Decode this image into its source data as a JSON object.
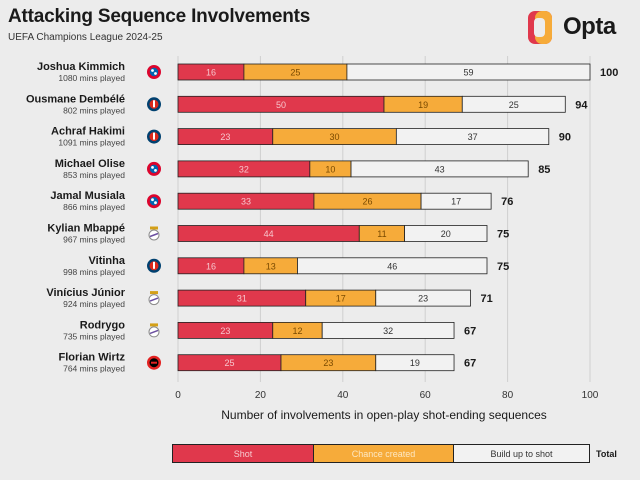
{
  "header": {
    "title": "Attacking Sequence Involvements",
    "subtitle": "UEFA Champions League 2024-25",
    "brand": "Opta"
  },
  "colors": {
    "shot": "#e0384c",
    "chance": "#f6ab3a",
    "build": "#f2f2f2",
    "outline": "#222222"
  },
  "chart_data": {
    "type": "bar",
    "orientation": "horizontal",
    "stacked": true,
    "title": "Attacking Sequence Involvements",
    "subtitle": "UEFA Champions League 2024-25",
    "xlabel": "Number of involvements in open-play shot-ending sequences",
    "xlim": [
      0,
      100
    ],
    "xticks": [
      0,
      20,
      40,
      60,
      80,
      100
    ],
    "grid": true,
    "legend": {
      "position": "bottom",
      "entries": [
        "Shot",
        "Chance created",
        "Build up to shot"
      ],
      "total_label": "Total"
    },
    "players": [
      {
        "name": "Joshua Kimmich",
        "minutes": "1080 mins played",
        "club": "Bayern Munich",
        "shot": 16,
        "chance": 25,
        "build": 59,
        "total": 100
      },
      {
        "name": "Ousmane Dembélé",
        "minutes": "802 mins played",
        "club": "Paris Saint-Germain",
        "shot": 50,
        "chance": 19,
        "build": 25,
        "total": 94
      },
      {
        "name": "Achraf Hakimi",
        "minutes": "1091 mins played",
        "club": "Paris Saint-Germain",
        "shot": 23,
        "chance": 30,
        "build": 37,
        "total": 90
      },
      {
        "name": "Michael Olise",
        "minutes": "853 mins played",
        "club": "Bayern Munich",
        "shot": 32,
        "chance": 10,
        "build": 43,
        "total": 85
      },
      {
        "name": "Jamal Musiala",
        "minutes": "866 mins played",
        "club": "Bayern Munich",
        "shot": 33,
        "chance": 26,
        "build": 17,
        "total": 76
      },
      {
        "name": "Kylian Mbappé",
        "minutes": "967 mins played",
        "club": "Real Madrid",
        "shot": 44,
        "chance": 11,
        "build": 20,
        "total": 75
      },
      {
        "name": "Vitinha",
        "minutes": "998 mins played",
        "club": "Paris Saint-Germain",
        "shot": 16,
        "chance": 13,
        "build": 46,
        "total": 75
      },
      {
        "name": "Vinícius Júnior",
        "minutes": "924 mins played",
        "club": "Real Madrid",
        "shot": 31,
        "chance": 17,
        "build": 23,
        "total": 71
      },
      {
        "name": "Rodrygo",
        "minutes": "735 mins played",
        "club": "Real Madrid",
        "shot": 23,
        "chance": 12,
        "build": 32,
        "total": 67
      },
      {
        "name": "Florian Wirtz",
        "minutes": "764 mins played",
        "club": "Bayer Leverkusen",
        "shot": 25,
        "chance": 23,
        "build": 19,
        "total": 67
      }
    ]
  }
}
